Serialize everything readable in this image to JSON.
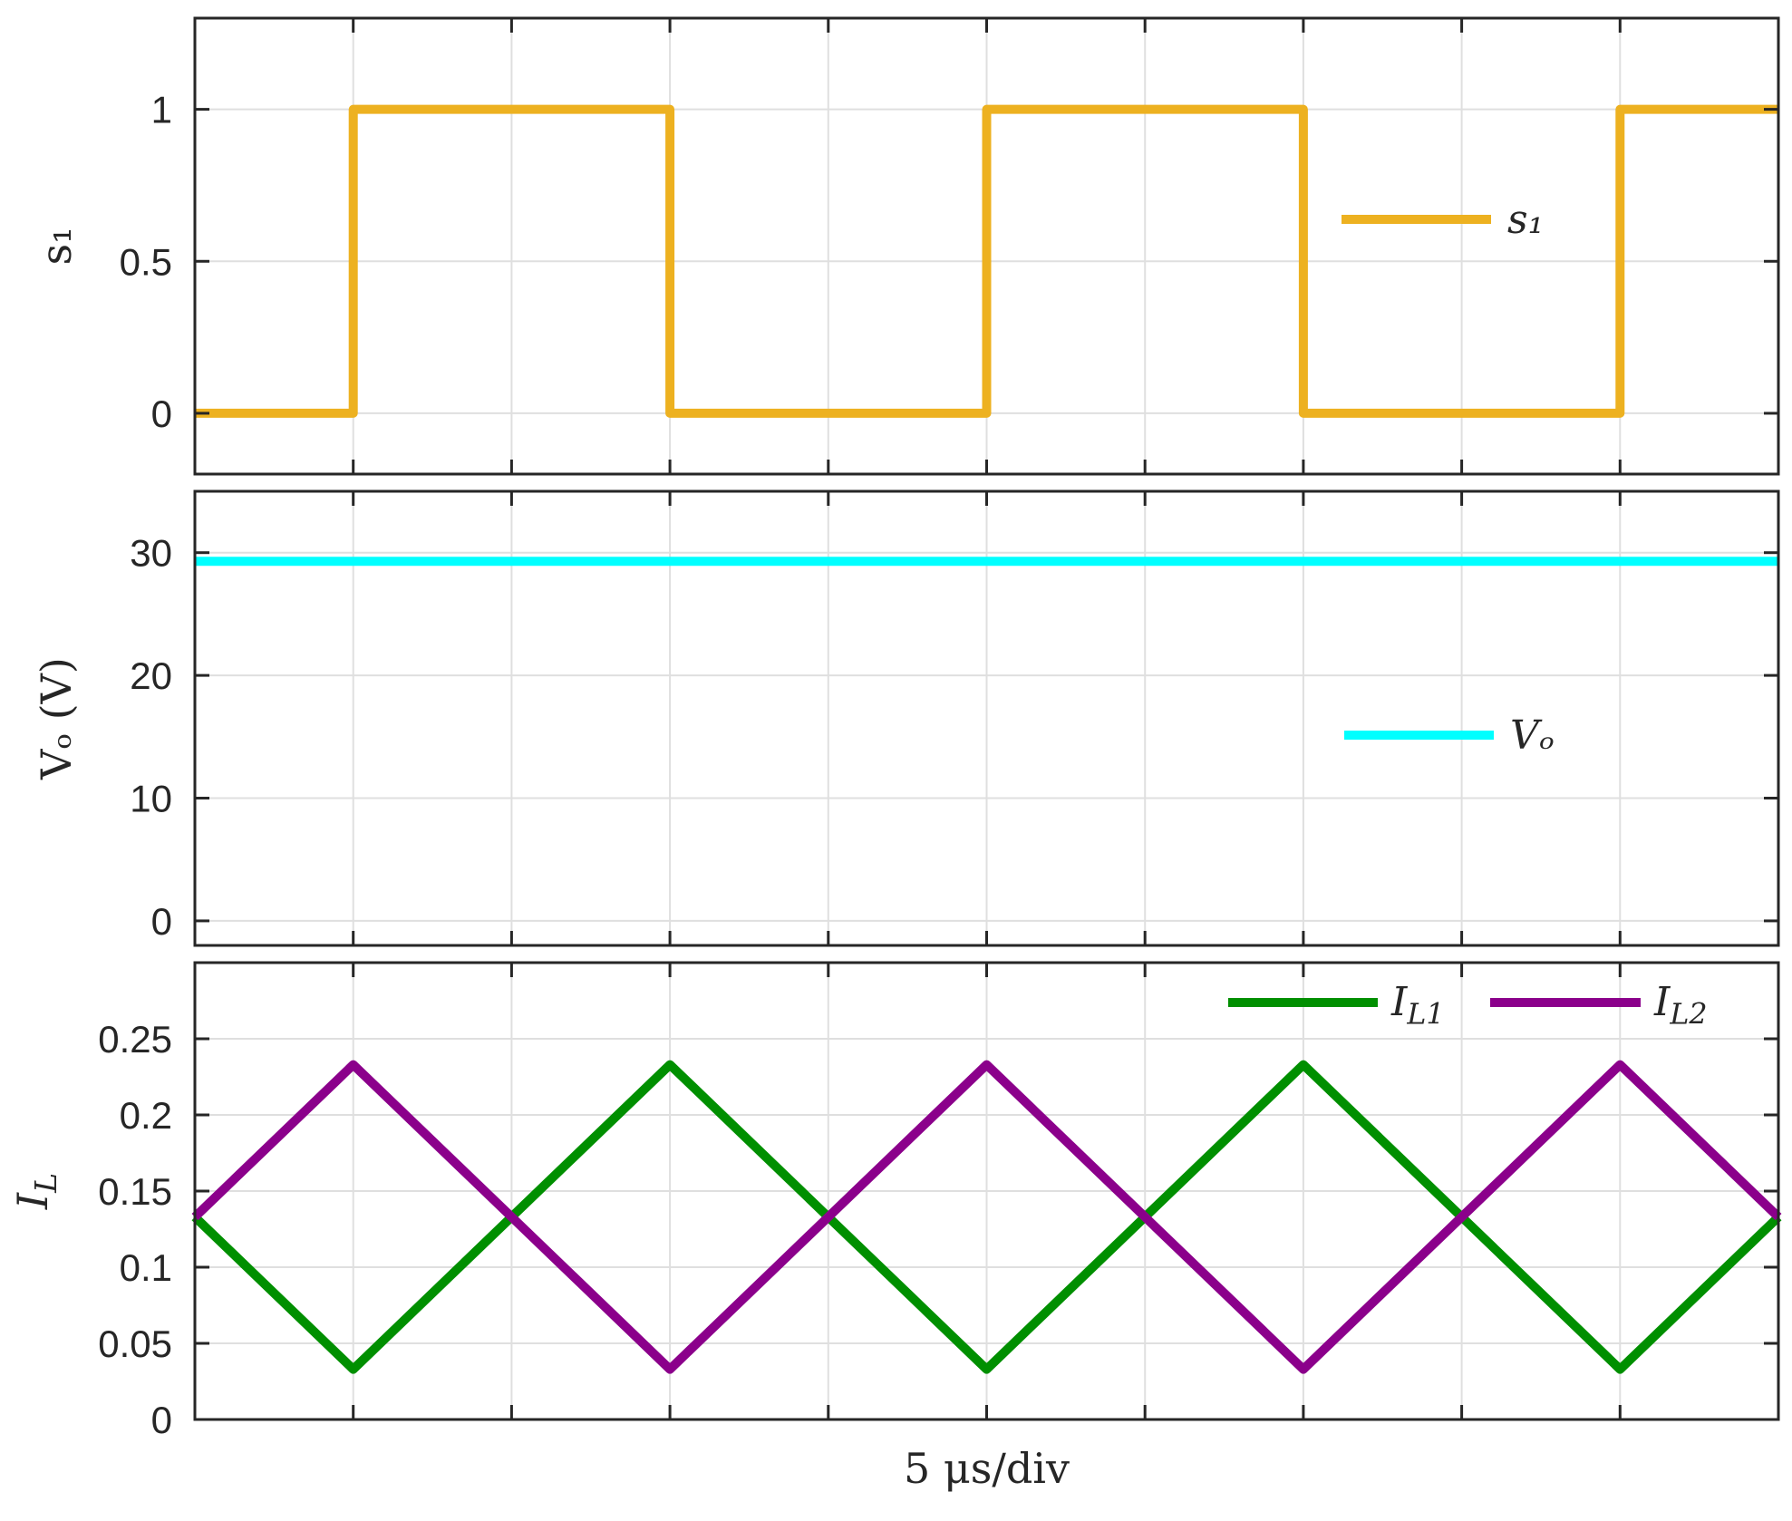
{
  "chart_data": [
    {
      "type": "line",
      "panel": "s1",
      "ylabel": "s₁",
      "ylim": [
        -0.2,
        1.3
      ],
      "yticks": [
        0,
        0.5,
        1
      ],
      "ytick_labels": [
        "0",
        "0.5",
        "1"
      ],
      "xlim": [
        0,
        10
      ],
      "grid": true,
      "legend_position": "middle-right",
      "series": [
        {
          "name": "s₁",
          "color": "#EDB120",
          "x": [
            0,
            1,
            1,
            3,
            3,
            5,
            5,
            7,
            7,
            9,
            9,
            10
          ],
          "y": [
            0,
            0,
            1,
            1,
            0,
            0,
            1,
            1,
            0,
            0,
            1,
            1
          ]
        }
      ]
    },
    {
      "type": "line",
      "panel": "vo",
      "ylabel": "Vₒ (V)",
      "ylim": [
        -2,
        35
      ],
      "yticks": [
        0,
        10,
        20,
        30
      ],
      "ytick_labels": [
        "0",
        "10",
        "20",
        "30"
      ],
      "xlim": [
        0,
        10
      ],
      "grid": true,
      "legend_position": "middle-right",
      "series": [
        {
          "name": "Vₒ",
          "color": "#00FFFF",
          "x": [
            0,
            10
          ],
          "y": [
            29.3,
            29.3
          ]
        }
      ]
    },
    {
      "type": "line",
      "panel": "il",
      "ylabel": "I_L",
      "ylim": [
        0,
        0.3
      ],
      "yticks": [
        0,
        0.05,
        0.1,
        0.15,
        0.2,
        0.25
      ],
      "ytick_labels": [
        "0",
        "0.05",
        "0.1",
        "0.15",
        "0.2",
        "0.25"
      ],
      "xlim": [
        0,
        10
      ],
      "xlabel": "5 μs/div",
      "grid": true,
      "legend_position": "top-right",
      "series": [
        {
          "name": "I_L1",
          "color": "#008F00",
          "x": [
            0,
            1,
            3,
            5,
            7,
            9,
            10
          ],
          "y": [
            0.133,
            0.033,
            0.233,
            0.033,
            0.233,
            0.033,
            0.133
          ]
        },
        {
          "name": "I_L2",
          "color": "#8B008B",
          "x": [
            0,
            1,
            3,
            5,
            7,
            9,
            10
          ],
          "y": [
            0.133,
            0.233,
            0.033,
            0.233,
            0.033,
            0.233,
            0.133
          ]
        }
      ]
    }
  ]
}
